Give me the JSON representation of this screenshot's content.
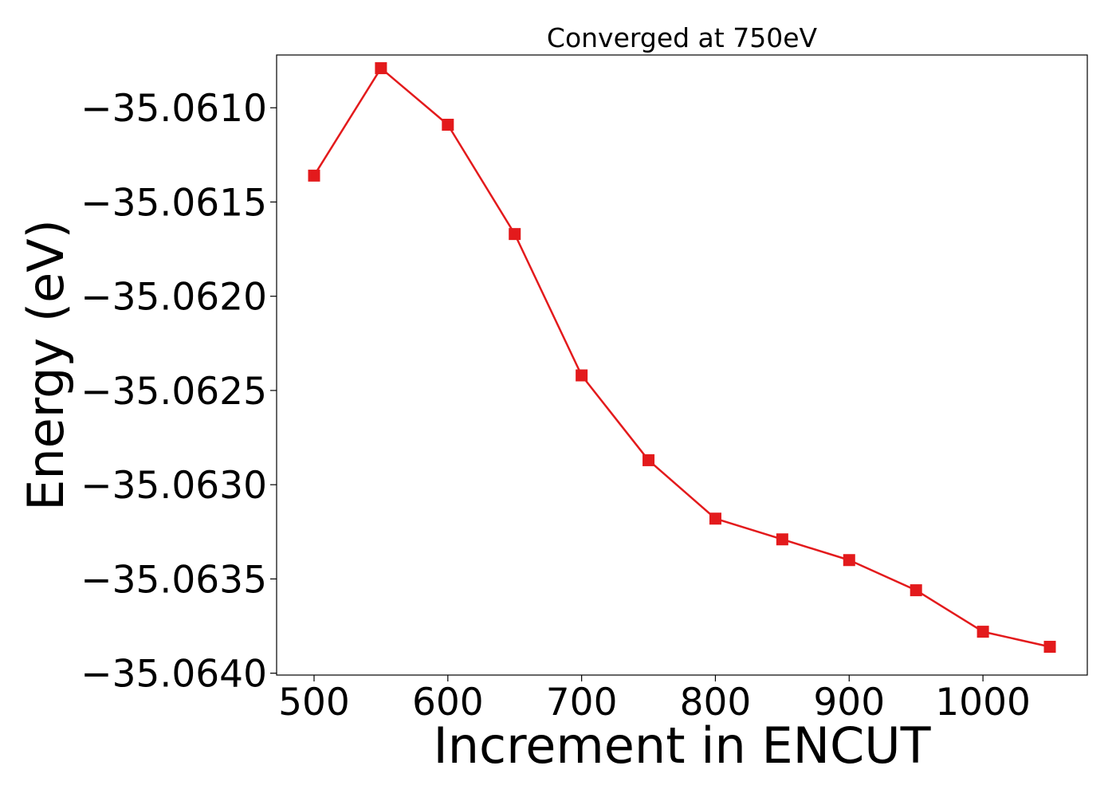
{
  "chart_data": {
    "type": "line",
    "title": "Converged at 750eV",
    "xlabel": "Increment in ENCUT",
    "ylabel": "Energy (eV)",
    "x": [
      500,
      550,
      600,
      650,
      700,
      750,
      800,
      850,
      900,
      950,
      1000,
      1050
    ],
    "series": [
      {
        "values": [
          -35.06136,
          -35.06079,
          -35.06109,
          -35.06167,
          -35.06242,
          -35.06287,
          -35.06318,
          -35.06329,
          -35.0634,
          -35.06356,
          -35.06378,
          -35.06386
        ]
      }
    ],
    "xlim": [
      472,
      1078
    ],
    "ylim": [
      -35.06401,
      -35.06072
    ],
    "xticks": [
      500,
      600,
      700,
      800,
      900,
      1000
    ],
    "xtick_labels": [
      "500",
      "600",
      "700",
      "800",
      "900",
      "1000"
    ],
    "yticks": [
      -35.061,
      -35.0615,
      -35.062,
      -35.0625,
      -35.063,
      -35.0635,
      -35.064
    ],
    "ytick_labels": [
      "−35.0610",
      "−35.0615",
      "−35.0620",
      "−35.0625",
      "−35.0630",
      "−35.0635",
      "−35.0640"
    ],
    "grid": false,
    "marker": "square",
    "colors": {
      "line": "#e31a1c",
      "axes": "#000000"
    }
  }
}
